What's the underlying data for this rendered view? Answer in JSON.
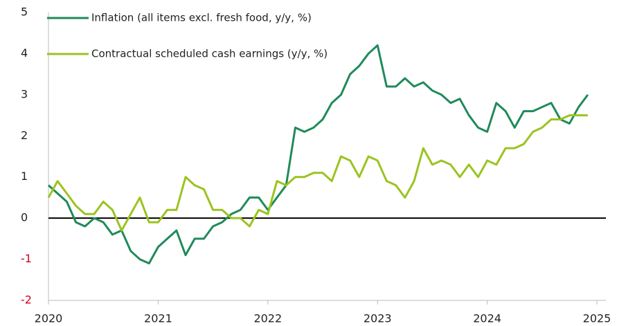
{
  "chart_data": {
    "type": "line",
    "x": [
      2020,
      2020.083,
      2020.167,
      2020.25,
      2020.333,
      2020.417,
      2020.5,
      2020.583,
      2020.667,
      2020.75,
      2020.833,
      2020.917,
      2021,
      2021.083,
      2021.167,
      2021.25,
      2021.333,
      2021.417,
      2021.5,
      2021.583,
      2021.667,
      2021.75,
      2021.833,
      2021.917,
      2022,
      2022.083,
      2022.167,
      2022.25,
      2022.333,
      2022.417,
      2022.5,
      2022.583,
      2022.667,
      2022.75,
      2022.833,
      2022.917,
      2023,
      2023.083,
      2023.167,
      2023.25,
      2023.333,
      2023.417,
      2023.5,
      2023.583,
      2023.667,
      2023.75,
      2023.833,
      2023.917,
      2024,
      2024.083,
      2024.167,
      2024.25,
      2024.333,
      2024.417,
      2024.5,
      2024.583,
      2024.667,
      2024.75,
      2024.833,
      2024.917
    ],
    "series": [
      {
        "name": "Inflation (all items excl. fresh food, y/y, %)",
        "color": "#1f8a5a",
        "values": [
          0.8,
          0.6,
          0.4,
          -0.1,
          -0.2,
          0.0,
          -0.1,
          -0.4,
          -0.3,
          -0.8,
          -1.0,
          -1.1,
          -0.7,
          -0.5,
          -0.3,
          -0.9,
          -0.5,
          -0.5,
          -0.2,
          -0.1,
          0.1,
          0.2,
          0.5,
          0.5,
          0.2,
          0.5,
          0.8,
          2.2,
          2.1,
          2.2,
          2.4,
          2.8,
          3.0,
          3.5,
          3.7,
          4.0,
          4.2,
          3.2,
          3.2,
          3.4,
          3.2,
          3.3,
          3.1,
          3.0,
          2.8,
          2.9,
          2.5,
          2.2,
          2.1,
          2.8,
          2.6,
          2.2,
          2.6,
          2.6,
          2.7,
          2.8,
          2.4,
          2.3,
          2.7,
          3.0
        ]
      },
      {
        "name": "Contractual scheduled cash earnings (y/y, %)",
        "color": "#9bc31f",
        "values": [
          0.5,
          0.9,
          0.6,
          0.3,
          0.1,
          0.1,
          0.4,
          0.2,
          -0.3,
          0.1,
          0.5,
          -0.1,
          -0.1,
          0.2,
          0.2,
          1.0,
          0.8,
          0.7,
          0.2,
          0.2,
          0.0,
          0.0,
          -0.2,
          0.2,
          0.1,
          0.9,
          0.8,
          1.0,
          1.0,
          1.1,
          1.1,
          0.9,
          1.5,
          1.4,
          1.0,
          1.5,
          1.4,
          0.9,
          0.8,
          0.5,
          0.9,
          1.7,
          1.3,
          1.4,
          1.3,
          1.0,
          1.3,
          1.0,
          1.4,
          1.3,
          1.7,
          1.7,
          1.8,
          2.1,
          2.2,
          2.4,
          2.4,
          2.5,
          2.5,
          2.5
        ]
      }
    ],
    "xlim": [
      2020,
      2025
    ],
    "xticks": [
      2020,
      2021,
      2022,
      2023,
      2024,
      2025
    ],
    "ylim": [
      -2,
      5
    ],
    "yticks": [
      -2,
      -1,
      0,
      1,
      2,
      3,
      4,
      5
    ],
    "grid": false,
    "zero_line": true,
    "negative_tick_color": "#d0021b",
    "legend": "upper left"
  }
}
